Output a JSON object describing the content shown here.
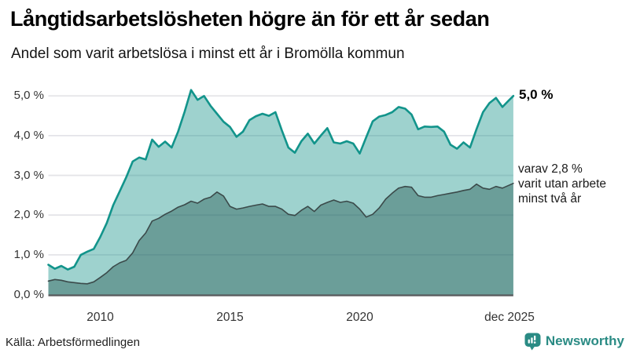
{
  "header": {
    "title": "Långtidsarbetslösheten högre än för ett år sedan",
    "subtitle": "Andel som varit arbetslösa i minst ett år i Bromölla kommun"
  },
  "chart_data": {
    "type": "area",
    "title": "Långtidsarbetslösheten högre än för ett år sedan",
    "subtitle": "Andel som varit arbetslösa i minst ett år i Bromölla kommun",
    "x_unit": "decimal_year",
    "xlim": [
      2008,
      2025.92
    ],
    "ylim": [
      0,
      5.3
    ],
    "grid": "horizontal",
    "x": [
      2008.0,
      2008.25,
      2008.5,
      2008.75,
      2009.0,
      2009.25,
      2009.5,
      2009.75,
      2010.0,
      2010.25,
      2010.5,
      2010.75,
      2011.0,
      2011.25,
      2011.5,
      2011.75,
      2012.0,
      2012.25,
      2012.5,
      2012.75,
      2013.0,
      2013.25,
      2013.5,
      2013.75,
      2014.0,
      2014.25,
      2014.5,
      2014.75,
      2015.0,
      2015.25,
      2015.5,
      2015.75,
      2016.0,
      2016.25,
      2016.5,
      2016.75,
      2017.0,
      2017.25,
      2017.5,
      2017.75,
      2018.0,
      2018.25,
      2018.5,
      2018.75,
      2019.0,
      2019.25,
      2019.5,
      2019.75,
      2020.0,
      2020.25,
      2020.5,
      2020.75,
      2021.0,
      2021.25,
      2021.5,
      2021.75,
      2022.0,
      2022.25,
      2022.5,
      2022.75,
      2023.0,
      2023.25,
      2023.5,
      2023.75,
      2024.0,
      2024.25,
      2024.5,
      2024.75,
      2025.0,
      2025.25,
      2025.5,
      2025.75,
      2025.92
    ],
    "series": [
      {
        "name": "Andel arbetslösa minst ett år",
        "line_color": "#12948b",
        "fill_color": "rgba(23,147,138,0.42)",
        "line_width": 2.6,
        "end_value_label": "5,0 %",
        "values": [
          0.75,
          0.65,
          0.72,
          0.63,
          0.7,
          1.0,
          1.08,
          1.15,
          1.45,
          1.8,
          2.25,
          2.6,
          2.95,
          3.35,
          3.45,
          3.4,
          3.9,
          3.72,
          3.85,
          3.7,
          4.1,
          4.6,
          5.15,
          4.9,
          5.0,
          4.75,
          4.55,
          4.35,
          4.22,
          3.97,
          4.1,
          4.39,
          4.49,
          4.55,
          4.5,
          4.59,
          4.13,
          3.7,
          3.57,
          3.86,
          4.05,
          3.8,
          4.0,
          4.19,
          3.83,
          3.8,
          3.86,
          3.8,
          3.55,
          3.96,
          4.36,
          4.48,
          4.52,
          4.59,
          4.72,
          4.68,
          4.53,
          4.16,
          4.23,
          4.22,
          4.23,
          4.1,
          3.77,
          3.67,
          3.83,
          3.7,
          4.16,
          4.59,
          4.82,
          4.95,
          4.72,
          4.89,
          5.0
        ]
      },
      {
        "name": "varav utan arbete minst två år",
        "line_color": "#3b4a4a",
        "fill_color": "rgba(30,80,75,0.40)",
        "line_width": 1.6,
        "end_value_label": "varav 2,8 %",
        "values": [
          0.34,
          0.38,
          0.36,
          0.32,
          0.3,
          0.28,
          0.27,
          0.32,
          0.43,
          0.55,
          0.7,
          0.8,
          0.86,
          1.05,
          1.36,
          1.55,
          1.85,
          1.92,
          2.02,
          2.1,
          2.2,
          2.26,
          2.35,
          2.3,
          2.4,
          2.45,
          2.58,
          2.48,
          2.22,
          2.15,
          2.18,
          2.22,
          2.25,
          2.28,
          2.22,
          2.22,
          2.15,
          2.02,
          1.99,
          2.12,
          2.22,
          2.09,
          2.25,
          2.32,
          2.38,
          2.32,
          2.35,
          2.3,
          2.15,
          1.95,
          2.02,
          2.18,
          2.4,
          2.55,
          2.68,
          2.72,
          2.7,
          2.49,
          2.45,
          2.45,
          2.49,
          2.52,
          2.55,
          2.58,
          2.62,
          2.65,
          2.78,
          2.68,
          2.65,
          2.72,
          2.68,
          2.75,
          2.8
        ]
      }
    ],
    "y_ticks": [
      {
        "value": 0,
        "label": "0,0 %"
      },
      {
        "value": 1,
        "label": "1,0 %"
      },
      {
        "value": 2,
        "label": "2,0 %"
      },
      {
        "value": 3,
        "label": "3,0 %"
      },
      {
        "value": 4,
        "label": "4,0 %"
      },
      {
        "value": 5,
        "label": "5,0 %"
      }
    ],
    "x_ticks": [
      {
        "year": 2010,
        "label": "2010"
      },
      {
        "year": 2015,
        "label": "2015"
      },
      {
        "year": 2020,
        "label": "2020"
      },
      {
        "year": 2025.92,
        "label": "dec 2025"
      }
    ],
    "annotations": {
      "end_label_top": "5,0 %",
      "end_label_bottom_lines": [
        "varav 2,8 %",
        "varit utan arbete",
        "minst två år"
      ]
    },
    "colors": {
      "grid": "#e4e4e8",
      "axis": "#58595b",
      "accent_teal": "#12948b",
      "dark_slate": "#3b4a4a"
    }
  },
  "footer": {
    "source": "Källa: Arbetsförmedlingen",
    "brand_name": "Newsworthy",
    "brand_color": "#2a8b84",
    "brand_icon": "newsworthy-chart-bubble-icon"
  }
}
